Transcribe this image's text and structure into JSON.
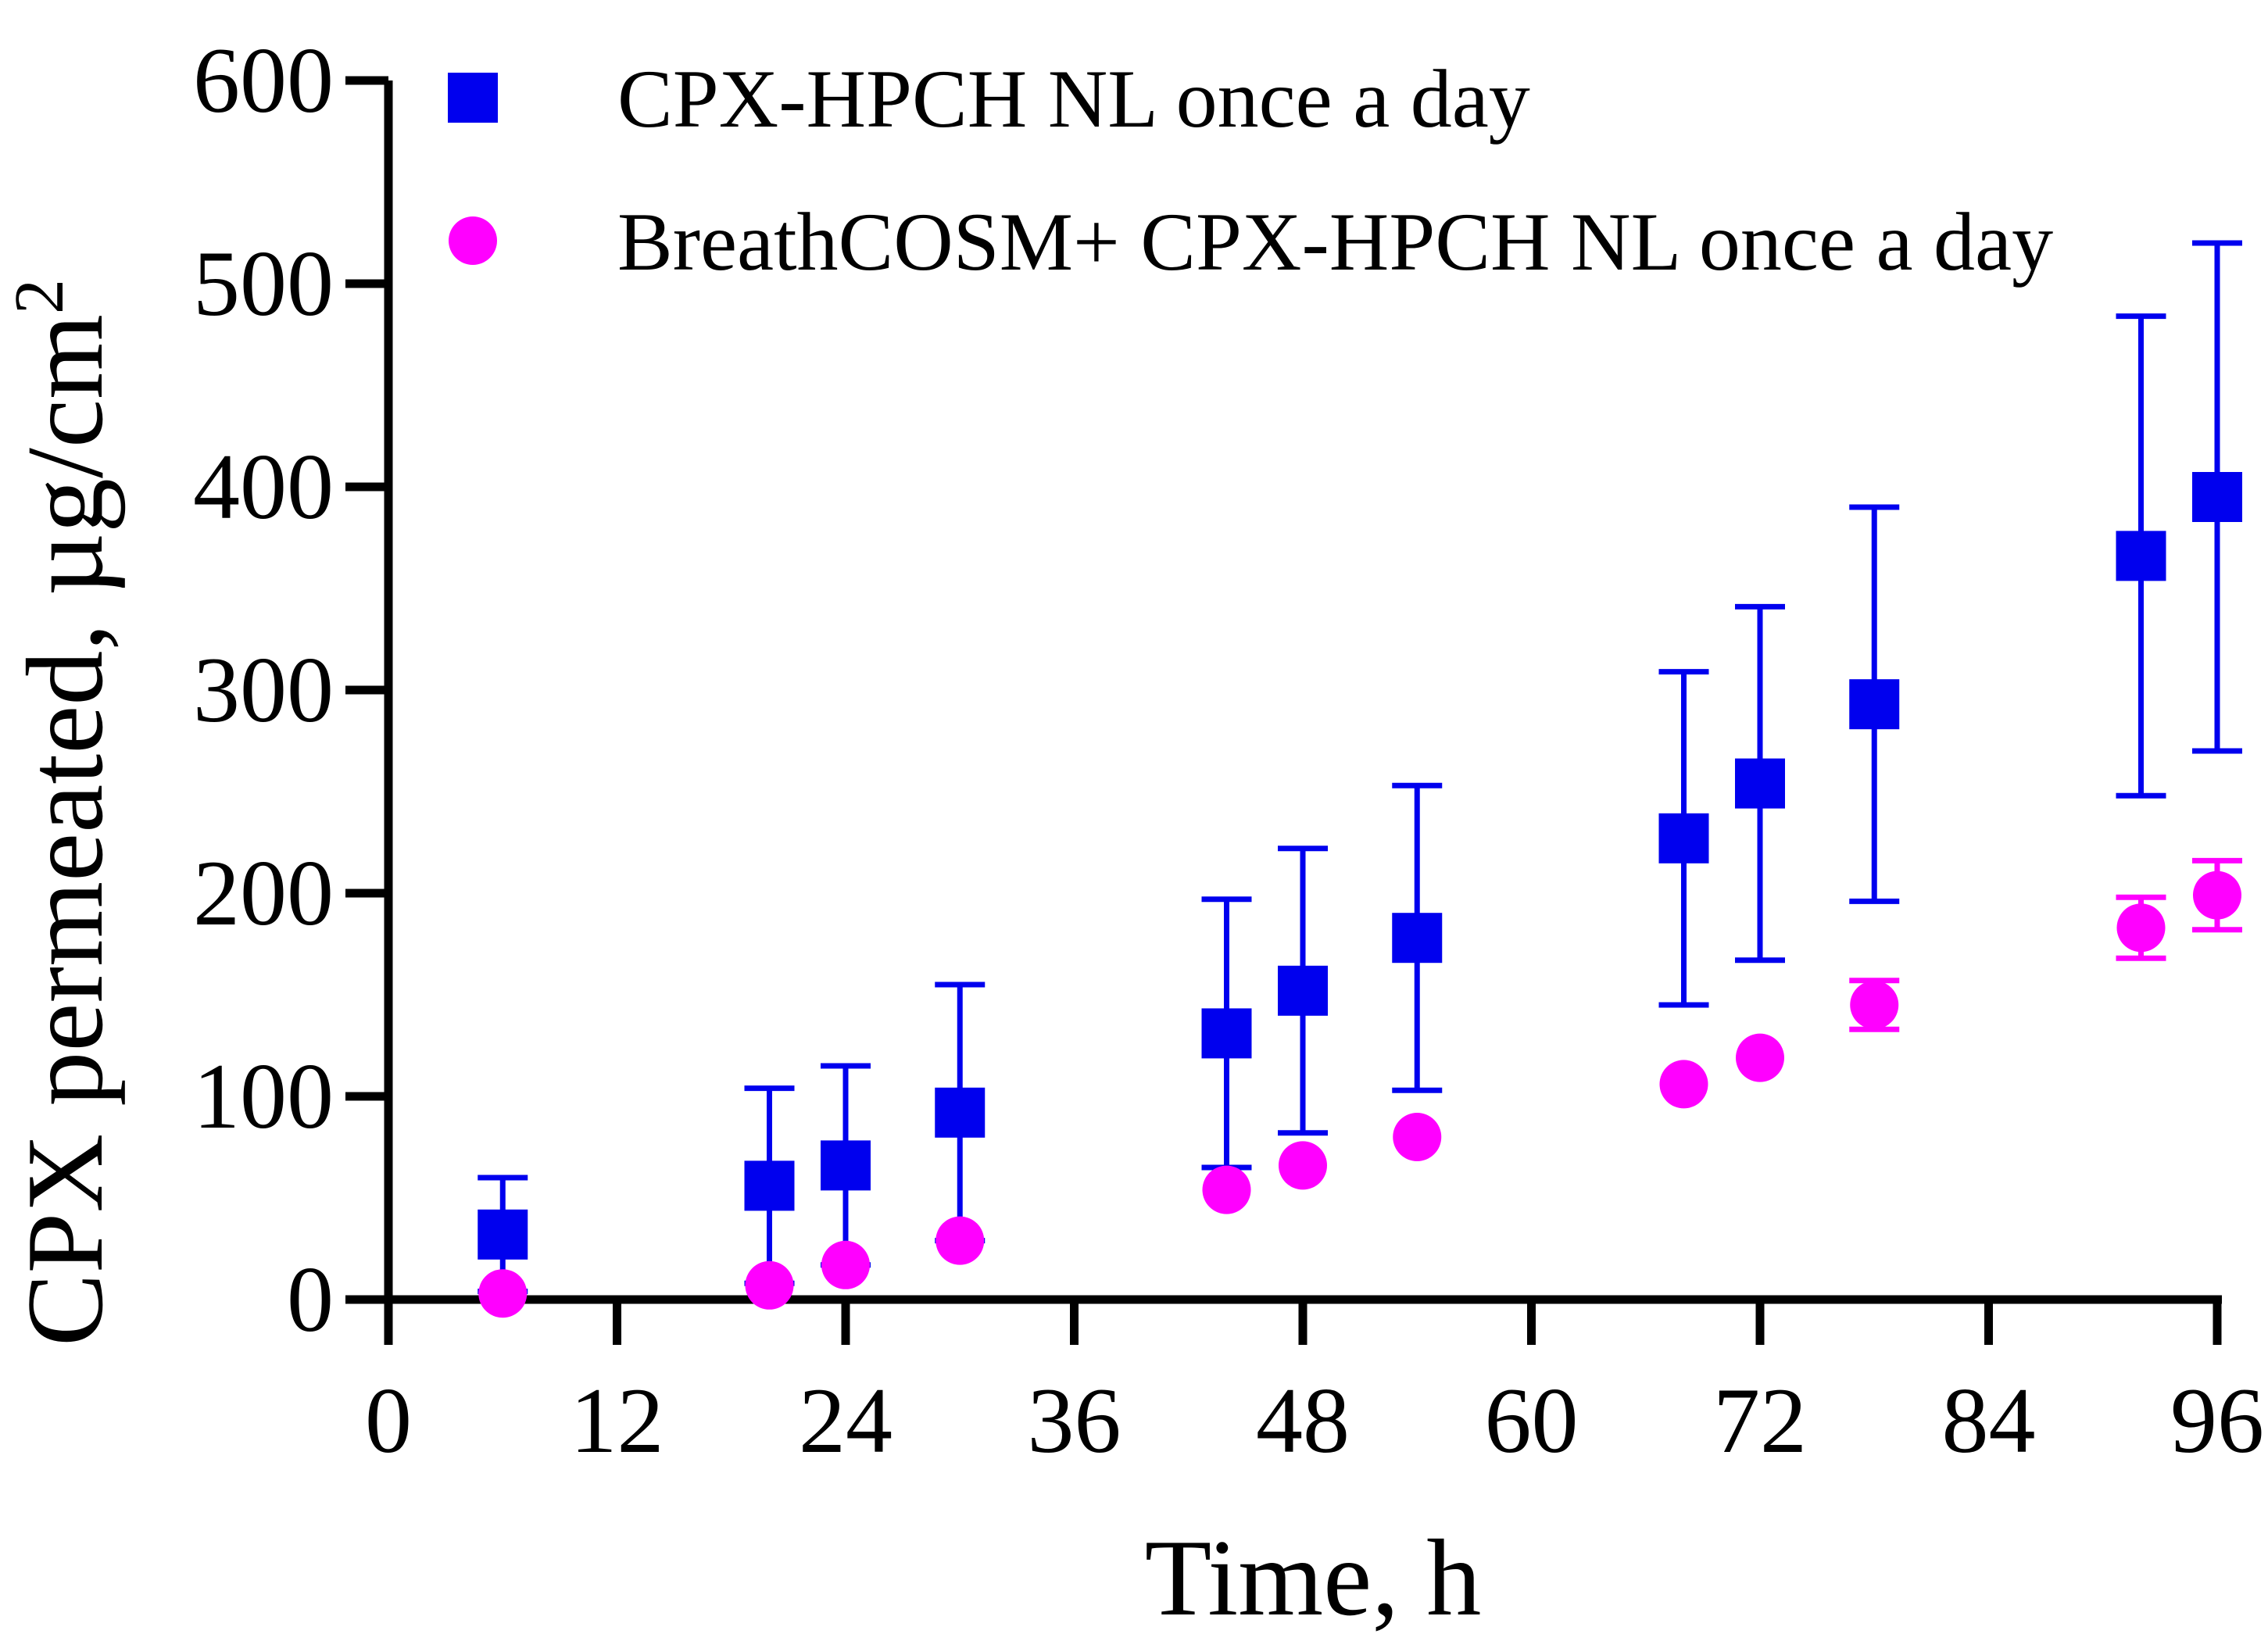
{
  "chart_data": {
    "type": "scatter",
    "title": "",
    "xlabel": "Time, h",
    "ylabel_prefix": "CPX permeated, µg/cm",
    "ylabel_superscript": "2",
    "xlim": [
      0,
      96
    ],
    "ylim": [
      0,
      600
    ],
    "xticks": [
      0,
      12,
      24,
      36,
      48,
      60,
      72,
      84,
      96
    ],
    "yticks": [
      0,
      100,
      200,
      300,
      400,
      500,
      600
    ],
    "xtick_labels": [
      "0",
      "12",
      "24",
      "36",
      "48",
      "60",
      "72",
      "84",
      "96"
    ],
    "ytick_labels": [
      "0",
      "100",
      "200",
      "300",
      "400",
      "500",
      "600"
    ],
    "grid": false,
    "legend_position": "top-left",
    "series": [
      {
        "name": "CPX-HPCH NL once a day",
        "marker": "square",
        "color": "#0000ee",
        "x": [
          6,
          20,
          24,
          30,
          44,
          48,
          54,
          68,
          72,
          78,
          92,
          96
        ],
        "y": [
          32,
          56,
          66,
          92,
          131,
          152,
          178,
          227,
          254,
          293,
          366,
          395
        ],
        "err": [
          28,
          48,
          49,
          63,
          66,
          70,
          75,
          82,
          87,
          97,
          118,
          125
        ]
      },
      {
        "name": "BreathCOSM+ CPX-HPCH NL once a day",
        "marker": "circle",
        "color": "#ff00ff",
        "x": [
          6,
          20,
          24,
          30,
          44,
          48,
          54,
          68,
          72,
          78,
          92,
          96
        ],
        "y": [
          3,
          7,
          17,
          29,
          54,
          66,
          80,
          106,
          119,
          145,
          183,
          199
        ],
        "err": [
          0,
          0,
          0,
          0,
          0,
          0,
          0,
          0,
          0,
          12,
          15,
          17
        ]
      }
    ]
  }
}
